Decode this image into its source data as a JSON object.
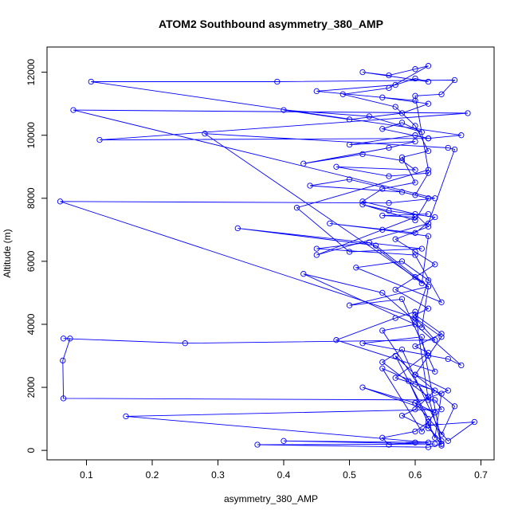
{
  "chart_data": {
    "type": "line",
    "title": "ATOM2 Southbound asymmetry_380_AMP",
    "xlabel": "asymmetry_380_AMP",
    "ylabel": "Altitude (m)",
    "xlim": [
      0.04,
      0.72
    ],
    "ylim": [
      -300,
      12800
    ],
    "xticks": [
      0.1,
      0.2,
      0.3,
      0.4,
      0.5,
      0.6,
      0.7
    ],
    "yticks": [
      0,
      2000,
      4000,
      6000,
      8000,
      10000,
      12000
    ],
    "grid": false,
    "legend": "none",
    "series": [
      {
        "color": "#0000ff",
        "marker": "open-circle",
        "x": [
          0.64,
          0.62,
          0.69,
          0.65,
          0.6,
          0.52,
          0.63,
          0.61,
          0.55,
          0.64,
          0.63,
          0.59,
          0.62,
          0.57,
          0.6,
          0.66,
          0.64,
          0.58,
          0.55,
          0.62,
          0.64,
          0.61,
          0.52,
          0.65,
          0.67,
          0.6,
          0.55,
          0.62,
          0.6,
          0.57,
          0.48,
          0.63,
          0.58,
          0.5,
          0.62,
          0.61,
          0.43,
          0.55,
          0.6,
          0.62,
          0.58,
          0.51,
          0.64,
          0.6,
          0.45,
          0.53,
          0.61,
          0.62,
          0.55,
          0.47,
          0.6,
          0.63,
          0.56,
          0.52,
          0.6,
          0.62,
          0.58,
          0.44,
          0.5,
          0.6,
          0.62,
          0.56,
          0.48,
          0.6,
          0.58,
          0.52,
          0.43,
          0.56,
          0.6,
          0.5,
          0.6,
          0.62,
          0.55,
          0.58,
          0.61,
          0.53,
          0.4,
          0.5,
          0.58,
          0.62,
          0.55,
          0.6,
          0.45,
          0.57,
          0.6,
          0.62,
          0.52,
          0.56,
          0.6,
          0.62,
          0.56,
          0.49,
          0.57,
          0.6,
          0.62,
          0.58,
          0.6,
          0.55,
          0.52,
          0.6,
          0.62,
          0.57,
          0.6,
          0.63,
          0.6,
          0.57,
          0.62,
          0.6,
          0.64,
          0.6,
          0.62,
          0.57,
          0.6,
          0.63,
          0.6,
          0.58,
          0.62,
          0.64,
          0.6,
          0.56,
          0.55,
          0.6,
          0.62,
          0.63,
          0.6,
          0.65,
          0.6,
          0.62,
          0.64,
          0.6
        ],
        "y": [
          150,
          800,
          900,
          300,
          1500,
          2000,
          1200,
          600,
          2600,
          1800,
          400,
          2200,
          1000,
          3000,
          2400,
          1400,
          500,
          3200,
          2800,
          1700,
          200,
          3600,
          3400,
          2900,
          2700,
          4000,
          3800,
          1600,
          4400,
          4200,
          3500,
          2500,
          4800,
          4600,
          5200,
          3900,
          5600,
          5000,
          4100,
          5400,
          6000,
          5800,
          4700,
          6200,
          6400,
          6600,
          5300,
          6800,
          7000,
          7200,
          6900,
          7400,
          7600,
          7800,
          7300,
          8000,
          8200,
          8400,
          8600,
          8100,
          8800,
          8700,
          9000,
          8900,
          9200,
          9400,
          9100,
          9600,
          9800,
          9700,
          10000,
          9900,
          10200,
          10400,
          10100,
          10600,
          10800,
          10500,
          10700,
          11000,
          11200,
          11100,
          11400,
          11600,
          11800,
          11700,
          12000,
          11900,
          12100,
          12200,
          11500,
          11300,
          10900,
          10300,
          9500,
          9300,
          8500,
          8300,
          7900,
          7500,
          7100,
          6700,
          6300,
          5900,
          5500,
          5100,
          4500,
          4300,
          3700,
          3300,
          3100,
          2300,
          2100,
          1900,
          1300,
          1100,
          700,
          300,
          250,
          180,
          400,
          600,
          900,
          1200,
          1500,
          1900,
          2400,
          3000,
          3600,
          4200
        ]
      },
      {
        "color": "#0000ff",
        "marker": "open-circle",
        "x": [
          0.64,
          0.62,
          0.36,
          0.63,
          0.4,
          0.62,
          0.16,
          0.64,
          0.63,
          0.065,
          0.064,
          0.075,
          0.065,
          0.25,
          0.63,
          0.6,
          0.06,
          0.56,
          0.63,
          0.08,
          0.68,
          0.12,
          0.62,
          0.67,
          0.107,
          0.39,
          0.66,
          0.64,
          0.6,
          0.62,
          0.42,
          0.5,
          0.61,
          0.33,
          0.54,
          0.62,
          0.28,
          0.65,
          0.66,
          0.62,
          0.45,
          0.6,
          0.55,
          0.62
        ],
        "y": [
          200,
          100,
          180,
          200,
          300,
          250,
          1080,
          1300,
          1600,
          1650,
          2850,
          3550,
          3550,
          3400,
          3500,
          4200,
          7900,
          7850,
          8000,
          10800,
          10700,
          9850,
          9900,
          10000,
          11700,
          11700,
          11750,
          11300,
          11250,
          8900,
          7700,
          6300,
          6400,
          7050,
          6500,
          5200,
          10050,
          9600,
          9550,
          7200,
          6200,
          7400,
          7450,
          7500
        ]
      }
    ]
  }
}
